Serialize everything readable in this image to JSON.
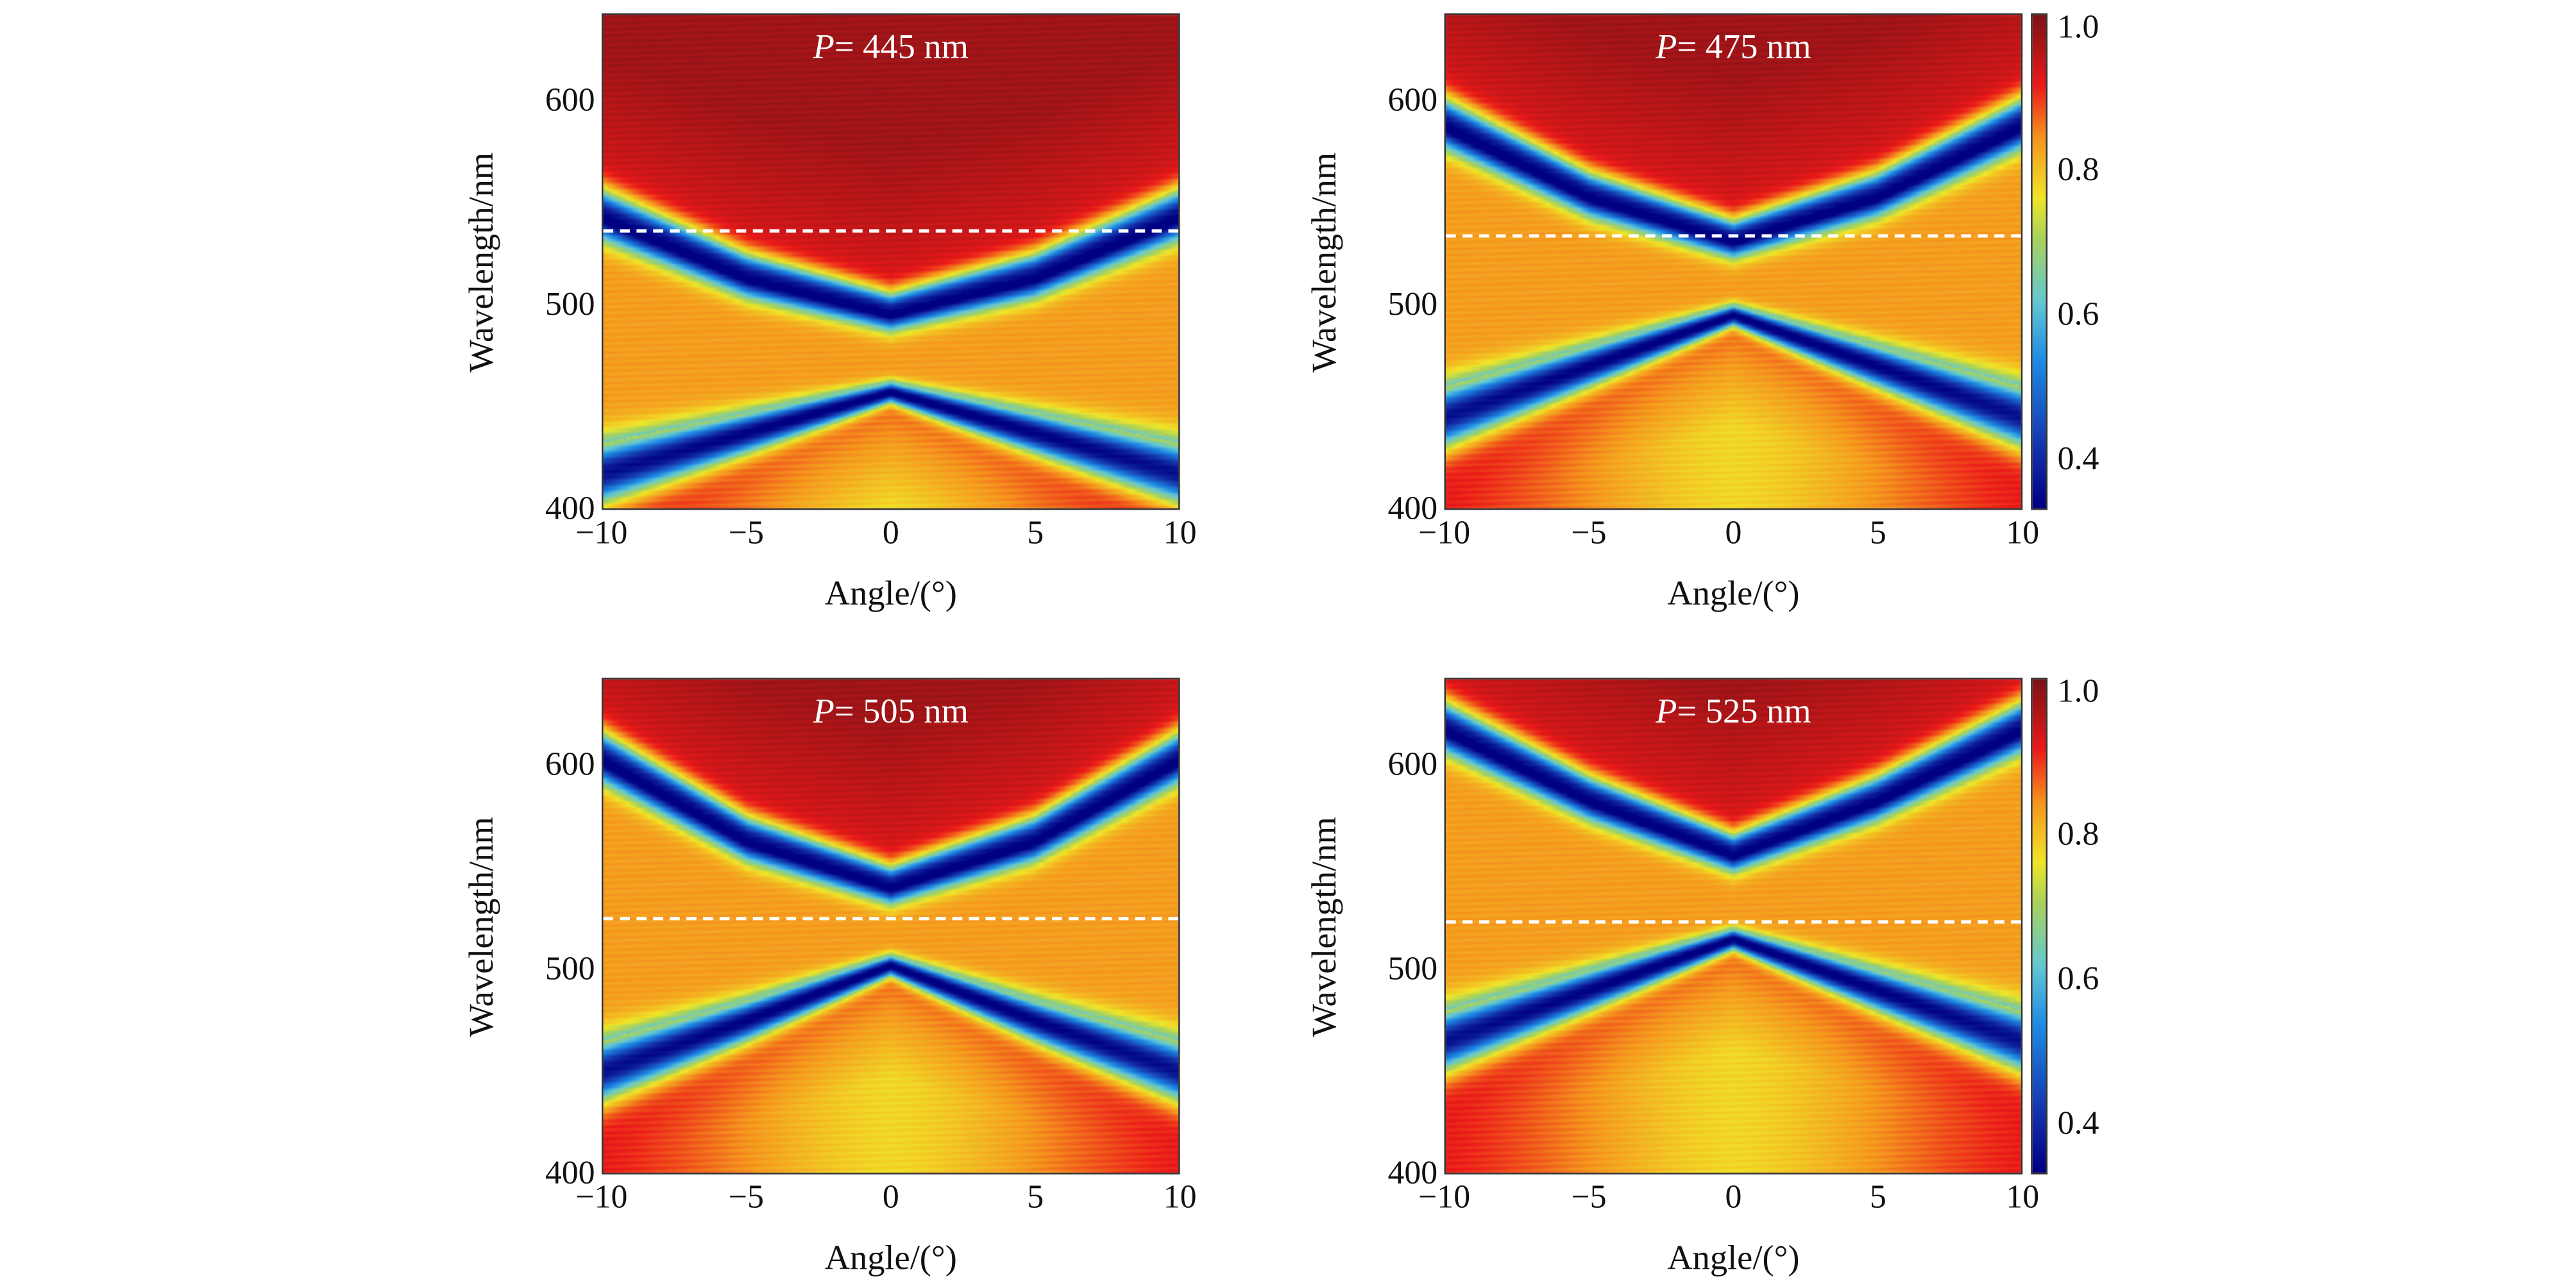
{
  "chart_data": {
    "type": "heatmap",
    "shared": {
      "xlabel": "Angle/(°)",
      "ylabel": "Wavelength/nm",
      "xlim": [
        -10,
        10
      ],
      "ylim": [
        400,
        643
      ],
      "xticks": [
        -10,
        -5,
        0,
        5,
        10
      ],
      "xtick_labels": [
        "−10",
        "−5",
        "0",
        "5",
        "10"
      ],
      "yticks": [
        400,
        500,
        600
      ],
      "ytick_labels": [
        "400",
        "500",
        "600"
      ],
      "colormap": "jet",
      "color_range": [
        0.33,
        1.02
      ],
      "colorbar_ticks": [
        0.4,
        0.6,
        0.8,
        1.0
      ],
      "colorbar_tick_labels": [
        "0.4",
        "0.6",
        "0.8",
        "1.0"
      ]
    },
    "panels": [
      {
        "title_var": "P",
        "title_value": "= 445 nm",
        "colorbar": false,
        "dashed_line_wavelength": 538,
        "upper_band": [
          [
            -10,
            545
          ],
          [
            -5,
            515
          ],
          [
            0,
            497
          ],
          [
            5,
            515
          ],
          [
            10,
            545
          ]
        ],
        "lower_band": [
          [
            -10,
            432
          ],
          [
            -5,
            447
          ],
          [
            0,
            462
          ],
          [
            5,
            447
          ],
          [
            10,
            432
          ]
        ]
      },
      {
        "title_var": "P",
        "title_value": "= 475 nm",
        "colorbar": true,
        "dashed_line_wavelength": 536,
        "upper_band": [
          [
            -10,
            590
          ],
          [
            -5,
            555
          ],
          [
            0,
            533
          ],
          [
            5,
            555
          ],
          [
            10,
            590
          ]
        ],
        "lower_band": [
          [
            -10,
            460
          ],
          [
            -5,
            480
          ],
          [
            0,
            500
          ],
          [
            5,
            480
          ],
          [
            10,
            460
          ]
        ]
      },
      {
        "title_var": "P",
        "title_value": "= 505 nm",
        "colorbar": false,
        "dashed_line_wavelength": 527,
        "upper_band": [
          [
            -10,
            605
          ],
          [
            -5,
            565
          ],
          [
            0,
            542
          ],
          [
            5,
            565
          ],
          [
            10,
            605
          ]
        ],
        "lower_band": [
          [
            -10,
            465
          ],
          [
            -5,
            485
          ],
          [
            0,
            507
          ],
          [
            5,
            485
          ],
          [
            10,
            465
          ]
        ]
      },
      {
        "title_var": "P",
        "title_value": "= 525 nm",
        "colorbar": true,
        "dashed_line_wavelength": 525,
        "upper_band": [
          [
            -10,
            620
          ],
          [
            -5,
            585
          ],
          [
            0,
            558
          ],
          [
            5,
            585
          ],
          [
            10,
            620
          ]
        ],
        "lower_band": [
          [
            -10,
            480
          ],
          [
            -5,
            500
          ],
          [
            0,
            520
          ],
          [
            5,
            500
          ],
          [
            10,
            480
          ]
        ]
      }
    ]
  }
}
